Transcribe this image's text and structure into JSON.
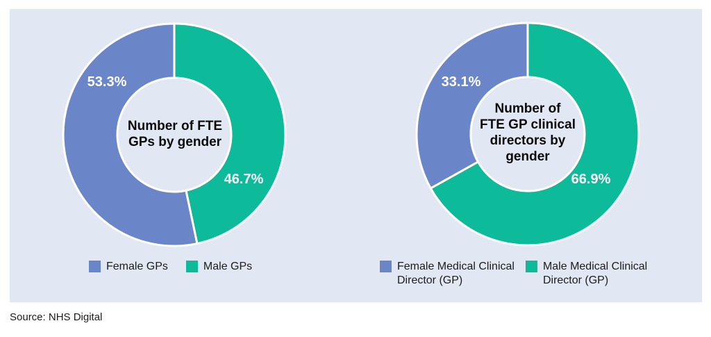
{
  "colors": {
    "female": "#6a86c8",
    "male": "#0dbb9b",
    "background": "#e2e7f4"
  },
  "chart_data": [
    {
      "type": "pie",
      "title": "Number of FTE GPs by gender",
      "slices": [
        {
          "label": "Male GPs",
          "value": 46.7,
          "display": "46.7%",
          "color": "#0dbb9b"
        },
        {
          "label": "Female GPs",
          "value": 53.3,
          "display": "53.3%",
          "color": "#6a86c8"
        }
      ],
      "legend": [
        "Female GPs",
        "Male GPs"
      ],
      "legend_position": "bottom"
    },
    {
      "type": "pie",
      "title": "Number of FTE GP clinical directors by gender",
      "slices": [
        {
          "label": "Male Medical Clinical Director (GP)",
          "value": 66.9,
          "display": "66.9%",
          "color": "#0dbb9b"
        },
        {
          "label": "Female Medical Clinical Director (GP)",
          "value": 33.1,
          "display": "33.1%",
          "color": "#6a86c8"
        }
      ],
      "legend": [
        "Female Medical Clinical Director (GP)",
        "Male Medical Clinical Director (GP)"
      ],
      "legend_position": "bottom"
    }
  ],
  "labels": {
    "chart1_center": "Number of FTE\nGPs by gender",
    "chart2_center": "Number of\nFTE GP clinical\ndirectors by\ngender",
    "legend1_female": "Female GPs",
    "legend1_male": "Male GPs",
    "legend2_female": "Female Medical Clinical\nDirector (GP)",
    "legend2_male": "Male Medical Clinical\nDirector (GP)"
  },
  "source": "Source: NHS Digital"
}
